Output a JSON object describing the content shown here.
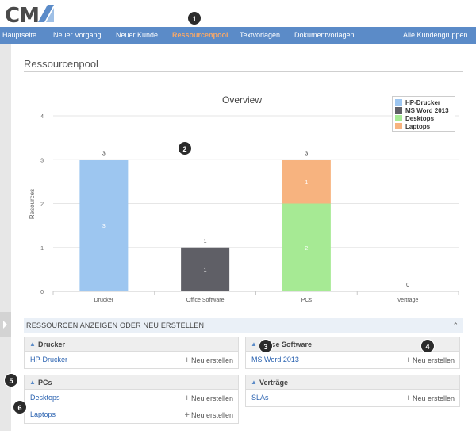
{
  "logo": {
    "text": "CM"
  },
  "nav": {
    "items": [
      "Hauptseite",
      "Neuer Vorgang",
      "Neuer Kunde",
      "Ressourcenpool",
      "Textvorlagen",
      "Dokumentvorlagen",
      "Alle Kundengruppen"
    ],
    "active_index": 3
  },
  "page_title": "Ressourcenpool",
  "chart_data": {
    "type": "bar",
    "title": "Overview",
    "ylabel": "Resources",
    "xlabel": "",
    "ylim": [
      0,
      4
    ],
    "yticks": [
      0,
      1,
      2,
      3,
      4
    ],
    "categories": [
      "Drucker",
      "Office Software",
      "PCs",
      "Verträge"
    ],
    "stacked": true,
    "series": [
      {
        "name": "HP-Drucker",
        "color": "#9dc6f0",
        "values": [
          3,
          0,
          0,
          0
        ]
      },
      {
        "name": "MS Word 2013",
        "color": "#5f5f66",
        "values": [
          0,
          1,
          0,
          0
        ]
      },
      {
        "name": "Desktops",
        "color": "#a6ea94",
        "values": [
          0,
          0,
          2,
          0
        ]
      },
      {
        "name": "Laptops",
        "color": "#f7b37f",
        "values": [
          0,
          0,
          1,
          0
        ]
      }
    ],
    "totals": [
      3,
      1,
      3,
      0
    ],
    "legend_position": "top-right",
    "grid": true
  },
  "resources": {
    "header": "RESSOURCEN ANZEIGEN ODER NEU ERSTELLEN",
    "new_label": "Neu erstellen",
    "groups": [
      {
        "title": "Drucker",
        "items": [
          "HP-Drucker"
        ]
      },
      {
        "title": "Office Software",
        "items": [
          "MS Word 2013"
        ]
      },
      {
        "title": "PCs",
        "items": [
          "Desktops",
          "Laptops"
        ]
      },
      {
        "title": "Verträge",
        "items": [
          "SLAs"
        ]
      }
    ]
  },
  "callouts": [
    "1",
    "2",
    "3",
    "4",
    "5",
    "6"
  ]
}
